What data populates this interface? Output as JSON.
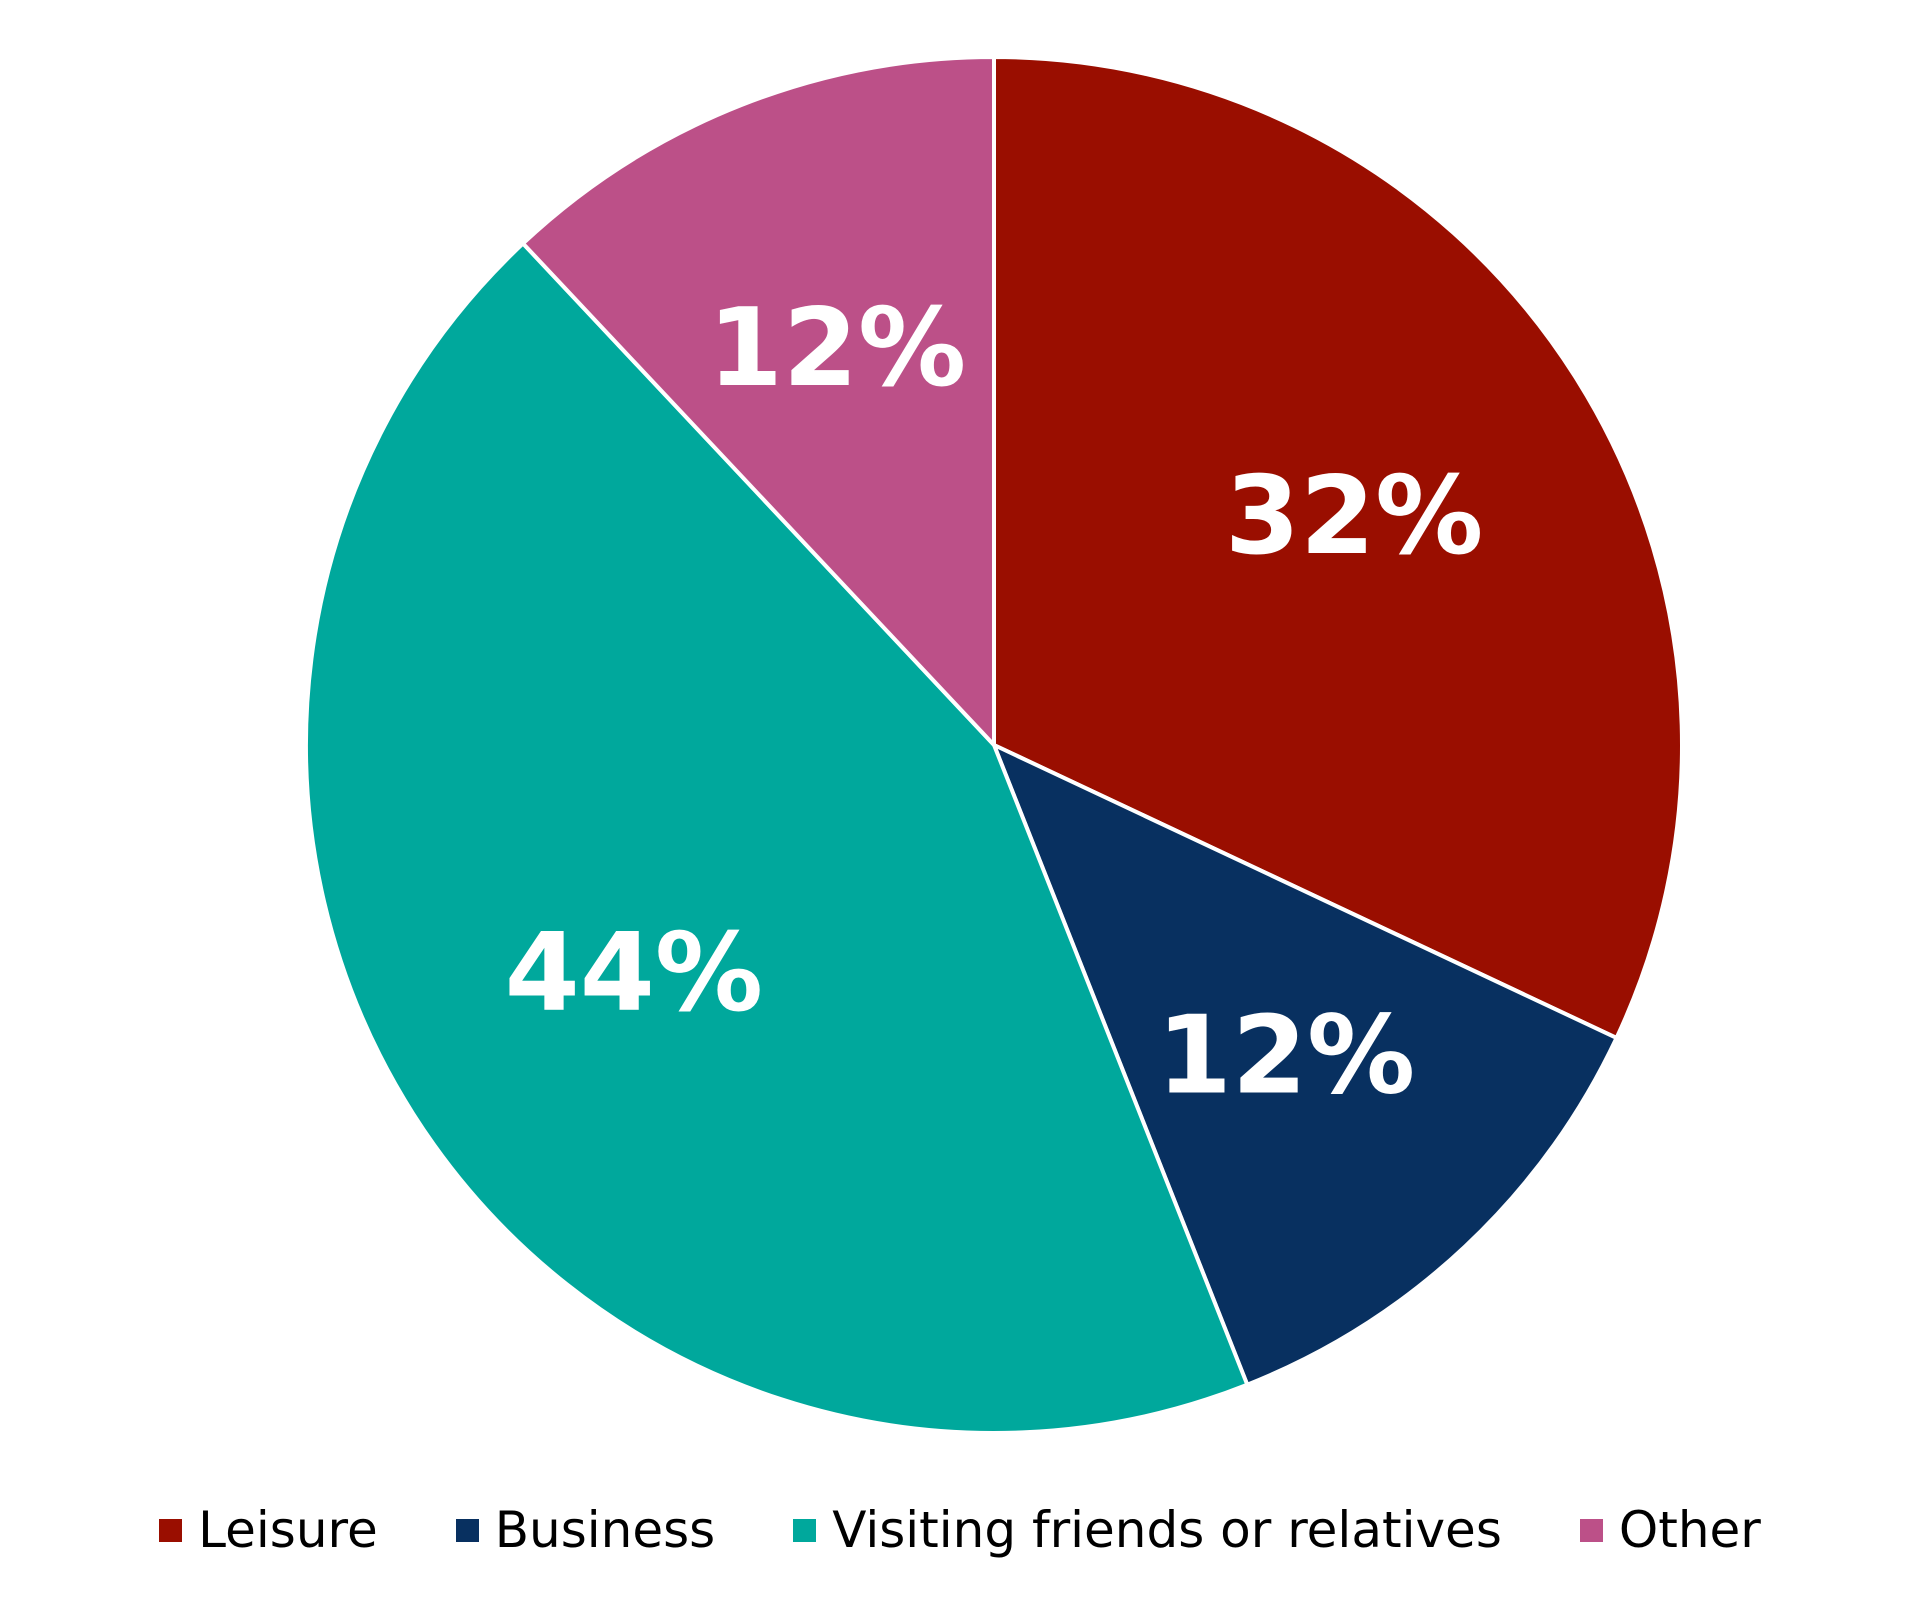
{
  "chart_data": {
    "type": "pie",
    "title": "",
    "legend_position": "bottom",
    "start_angle_deg": 0,
    "direction": "clockwise",
    "slices": [
      {
        "name": "Leisure",
        "value": 32,
        "label": "32%",
        "color": "#9A0E00"
      },
      {
        "name": "Business",
        "value": 12,
        "label": "12%",
        "color": "#083060"
      },
      {
        "name": "Visiting friends or relatives",
        "value": 44,
        "label": "44%",
        "color": "#00A89C"
      },
      {
        "name": "Other",
        "value": 12,
        "label": "12%",
        "color": "#BC5088"
      }
    ]
  }
}
